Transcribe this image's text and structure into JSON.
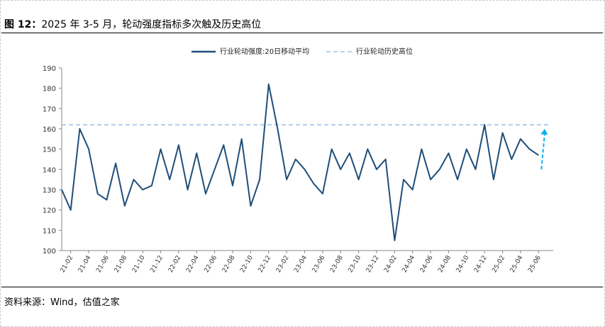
{
  "figure": {
    "label": "图 12：",
    "title": "2025 年 3-5 月，轮动强度指标多次触及历史高位"
  },
  "source": "资料来源：Wind，估值之家",
  "colors": {
    "series": "#1f4e79",
    "reference": "#9dc3e6",
    "arrow": "#00b0f0",
    "axis": "#888888"
  },
  "chart_data": {
    "type": "line",
    "legend": {
      "placement": "top-center"
    },
    "grid": false,
    "ylim": [
      100,
      190
    ],
    "yticks": [
      100,
      110,
      120,
      130,
      140,
      150,
      160,
      170,
      180,
      190
    ],
    "xlabels": [
      "21-02",
      "21-04",
      "21-06",
      "21-08",
      "21-10",
      "21-12",
      "22-02",
      "22-04",
      "22-06",
      "22-08",
      "22-10",
      "22-12",
      "23-02",
      "23-04",
      "23-06",
      "23-08",
      "23-10",
      "23-12",
      "24-02",
      "24-04",
      "24-06",
      "24-08",
      "24-10",
      "24-12",
      "25-02",
      "25-04",
      "25-06"
    ],
    "series": [
      {
        "name": "行业轮动强度:20日移动平均",
        "style": "solid",
        "x": [
          "21-01",
          "21-02",
          "21-03",
          "21-04",
          "21-05",
          "21-06",
          "21-07",
          "21-08",
          "21-09",
          "21-10",
          "21-11",
          "21-12",
          "22-01",
          "22-02",
          "22-03",
          "22-04",
          "22-05",
          "22-06",
          "22-07",
          "22-08",
          "22-09",
          "22-10",
          "22-11",
          "22-12",
          "23-01",
          "23-02",
          "23-03",
          "23-04",
          "23-05",
          "23-06",
          "23-07",
          "23-08",
          "23-09",
          "23-10",
          "23-11",
          "23-12",
          "24-01",
          "24-02",
          "24-03",
          "24-04",
          "24-05",
          "24-06",
          "24-07",
          "24-08",
          "24-09",
          "24-10",
          "24-11",
          "24-12",
          "25-01",
          "25-02",
          "25-03",
          "25-04",
          "25-05",
          "25-06"
        ],
        "y": [
          130,
          120,
          160,
          150,
          128,
          125,
          143,
          122,
          135,
          130,
          132,
          150,
          135,
          152,
          130,
          148,
          128,
          140,
          152,
          132,
          155,
          122,
          135,
          182,
          160,
          135,
          145,
          140,
          133,
          128,
          150,
          140,
          148,
          135,
          150,
          140,
          145,
          105,
          135,
          130,
          150,
          135,
          140,
          148,
          135,
          150,
          140,
          162,
          135,
          158,
          145,
          155,
          150,
          147
        ]
      },
      {
        "name": "行业轮动历史高位",
        "style": "dashed",
        "value": 162
      }
    ],
    "annotation": {
      "type": "arrow",
      "from": [
        "25-06",
        140
      ],
      "to": [
        "25-07",
        160
      ]
    }
  }
}
